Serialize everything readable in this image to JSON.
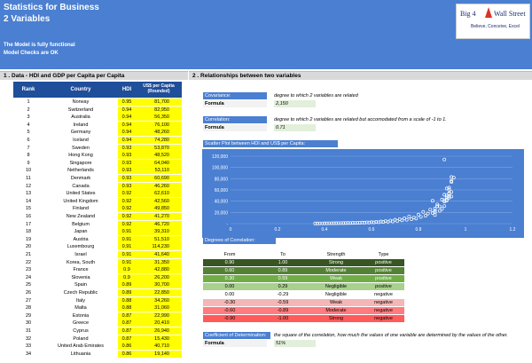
{
  "header": {
    "title": "Statistics for Business",
    "subtitle": "2 Variables",
    "note1": "The Model is fully functional",
    "note2": "Model Checks are OK"
  },
  "logo": {
    "part1": "Big 4",
    "part2": "Wall Street",
    "tagline": "Believe, Conceive, Excel"
  },
  "section1": {
    "title": "1 . Data -   HDI and GDP per Capita per Capita"
  },
  "section2": {
    "title": "2 . Relationships between two variables"
  },
  "table": {
    "headers": [
      "Rank",
      "Country",
      "HDI",
      "US$ per Capita (Rounded)"
    ],
    "rows": [
      [
        "1",
        "Norway",
        "0.95",
        "81,700"
      ],
      [
        "2",
        "Switzerland",
        "0.94",
        "82,950"
      ],
      [
        "3",
        "Australia",
        "0.94",
        "56,350"
      ],
      [
        "4",
        "Ireland",
        "0.94",
        "76,100"
      ],
      [
        "5",
        "Germany",
        "0.94",
        "48,260"
      ],
      [
        "6",
        "Iceland",
        "0.94",
        "74,280"
      ],
      [
        "7",
        "Sweden",
        "0.93",
        "53,870"
      ],
      [
        "8",
        "Hong Kong",
        "0.93",
        "48,520"
      ],
      [
        "9",
        "Singapore",
        "0.93",
        "64,040"
      ],
      [
        "10",
        "Netherlands",
        "0.93",
        "53,110"
      ],
      [
        "11",
        "Denmark",
        "0.93",
        "60,690"
      ],
      [
        "12",
        "Canada",
        "0.93",
        "46,260"
      ],
      [
        "13",
        "United States",
        "0.92",
        "62,610"
      ],
      [
        "14",
        "United Kingdom",
        "0.92",
        "42,560"
      ],
      [
        "15",
        "Finland",
        "0.92",
        "49,850"
      ],
      [
        "16",
        "New Zealand",
        "0.92",
        "41,270"
      ],
      [
        "17",
        "Belgium",
        "0.92",
        "46,720"
      ],
      [
        "18",
        "Japan",
        "0.91",
        "39,310"
      ],
      [
        "19",
        "Austria",
        "0.91",
        "51,510"
      ],
      [
        "20",
        "Luxembourg",
        "0.91",
        "114,230"
      ],
      [
        "21",
        "Israel",
        "0.91",
        "41,640"
      ],
      [
        "22",
        "Korea, South",
        "0.91",
        "31,350"
      ],
      [
        "23",
        "France",
        "0.9",
        "42,880"
      ],
      [
        "24",
        "Slovenia",
        "0.9",
        "26,200"
      ],
      [
        "25",
        "Spain",
        "0.89",
        "30,700"
      ],
      [
        "26",
        "Czech Republic",
        "0.89",
        "22,850"
      ],
      [
        "27",
        "Italy",
        "0.88",
        "34,260"
      ],
      [
        "28",
        "Malta",
        "0.88",
        "31,060"
      ],
      [
        "29",
        "Estonia",
        "0.87",
        "22,990"
      ],
      [
        "30",
        "Greece",
        "0.87",
        "20,410"
      ],
      [
        "31",
        "Cyprus",
        "0.87",
        "26,940"
      ],
      [
        "32",
        "Poland",
        "0.87",
        "15,430"
      ],
      [
        "33",
        "United Arab Emirates",
        "0.86",
        "40,710"
      ],
      [
        "34",
        "Lithuania",
        "0.86",
        "19,140"
      ]
    ]
  },
  "covariance": {
    "label": "Covariance:",
    "desc": "degree to which 2 variables are related",
    "formula_label": "Formula",
    "value": "2,150"
  },
  "correlation": {
    "label": "Correlation:",
    "desc": "degree to which 2 variables are related but accomodated from a scale of -1 to 1.",
    "formula_label": "Formula",
    "value": "0.71"
  },
  "scatter_title": "Scatter Plot between HDI and US$ per Capita:",
  "chart_data": {
    "type": "scatter",
    "title": "",
    "xlabel": "",
    "ylabel": "",
    "xlim": [
      0,
      1.2
    ],
    "ylim": [
      0,
      120000
    ],
    "xticks": [
      "0",
      "0.2",
      "0.4",
      "0.6",
      "0.8",
      "1",
      "1.2"
    ],
    "yticks": [
      "-",
      "20,000",
      "40,000",
      "60,000",
      "80,000",
      "100,000",
      "120,000"
    ],
    "grid": true,
    "points": [
      [
        0.95,
        81700
      ],
      [
        0.94,
        82950
      ],
      [
        0.94,
        56350
      ],
      [
        0.94,
        76100
      ],
      [
        0.94,
        48260
      ],
      [
        0.94,
        74280
      ],
      [
        0.93,
        53870
      ],
      [
        0.93,
        48520
      ],
      [
        0.93,
        64040
      ],
      [
        0.93,
        53110
      ],
      [
        0.93,
        60690
      ],
      [
        0.93,
        46260
      ],
      [
        0.92,
        62610
      ],
      [
        0.92,
        42560
      ],
      [
        0.92,
        49850
      ],
      [
        0.92,
        41270
      ],
      [
        0.92,
        46720
      ],
      [
        0.91,
        39310
      ],
      [
        0.91,
        51510
      ],
      [
        0.91,
        114230
      ],
      [
        0.91,
        41640
      ],
      [
        0.91,
        31350
      ],
      [
        0.9,
        42880
      ],
      [
        0.9,
        26200
      ],
      [
        0.89,
        30700
      ],
      [
        0.89,
        22850
      ],
      [
        0.88,
        34260
      ],
      [
        0.88,
        31060
      ],
      [
        0.87,
        22990
      ],
      [
        0.87,
        20410
      ],
      [
        0.87,
        26940
      ],
      [
        0.87,
        15430
      ],
      [
        0.86,
        40710
      ],
      [
        0.86,
        19140
      ],
      [
        0.85,
        25000
      ],
      [
        0.84,
        18000
      ],
      [
        0.83,
        14000
      ],
      [
        0.82,
        21000
      ],
      [
        0.81,
        12000
      ],
      [
        0.8,
        16000
      ],
      [
        0.79,
        9000
      ],
      [
        0.78,
        11000
      ],
      [
        0.77,
        8000
      ],
      [
        0.76,
        13000
      ],
      [
        0.75,
        7000
      ],
      [
        0.74,
        9500
      ],
      [
        0.73,
        6000
      ],
      [
        0.72,
        8000
      ],
      [
        0.71,
        5000
      ],
      [
        0.7,
        7000
      ],
      [
        0.69,
        4000
      ],
      [
        0.68,
        5500
      ],
      [
        0.67,
        3500
      ],
      [
        0.66,
        4500
      ],
      [
        0.65,
        3000
      ],
      [
        0.64,
        3800
      ],
      [
        0.63,
        2500
      ],
      [
        0.62,
        3000
      ],
      [
        0.61,
        2200
      ],
      [
        0.6,
        2600
      ],
      [
        0.59,
        2000
      ],
      [
        0.58,
        2300
      ],
      [
        0.57,
        1800
      ],
      [
        0.56,
        2000
      ],
      [
        0.55,
        1500
      ],
      [
        0.54,
        1700
      ],
      [
        0.53,
        1300
      ],
      [
        0.52,
        1400
      ],
      [
        0.51,
        1100
      ],
      [
        0.5,
        1200
      ],
      [
        0.49,
        1000
      ],
      [
        0.48,
        1000
      ],
      [
        0.47,
        900
      ],
      [
        0.46,
        900
      ],
      [
        0.45,
        800
      ],
      [
        0.44,
        800
      ],
      [
        0.43,
        700
      ],
      [
        0.42,
        700
      ],
      [
        0.41,
        600
      ],
      [
        0.4,
        600
      ],
      [
        0.39,
        500
      ],
      [
        0.38,
        500
      ],
      [
        0.37,
        400
      ],
      [
        0.36,
        400
      ]
    ]
  },
  "degrees": {
    "title": "Degrees of Correlation:",
    "headers": [
      "From",
      "To",
      "Strength",
      "Type"
    ],
    "rows": [
      [
        "0.90",
        "1.00",
        "Strong",
        "positive"
      ],
      [
        "0.60",
        "0.89",
        "Moderate",
        "positive"
      ],
      [
        "0.30",
        "0.59",
        "Weak",
        "positive"
      ],
      [
        "0.00",
        "0.29",
        "Negligible",
        "positive"
      ],
      [
        "0.00",
        "-0.29",
        "Negligible",
        "negative"
      ],
      [
        "-0.30",
        "-0.59",
        "Weak",
        "negative"
      ],
      [
        "-0.60",
        "-0.89",
        "Moderate",
        "negative"
      ],
      [
        "-0.90",
        "-1.00",
        "Strong",
        "negative"
      ]
    ],
    "row_colors": [
      "#375623",
      "#548235",
      "#70ad47",
      "#a9d08e",
      "#ffffff",
      "#f4b6b6",
      "#ff7c80",
      "#ff5b5b"
    ],
    "row_text": [
      "#ffffff",
      "#ffffff",
      "#ffffff",
      "#000000",
      "#000000",
      "#000000",
      "#000000",
      "#000000"
    ]
  },
  "cod": {
    "label": "Coefficient of Determination:",
    "desc": "the square of the correlation, how much the values of one variable are determined by the values of the other.",
    "formula_label": "Formula",
    "value": "51%"
  }
}
